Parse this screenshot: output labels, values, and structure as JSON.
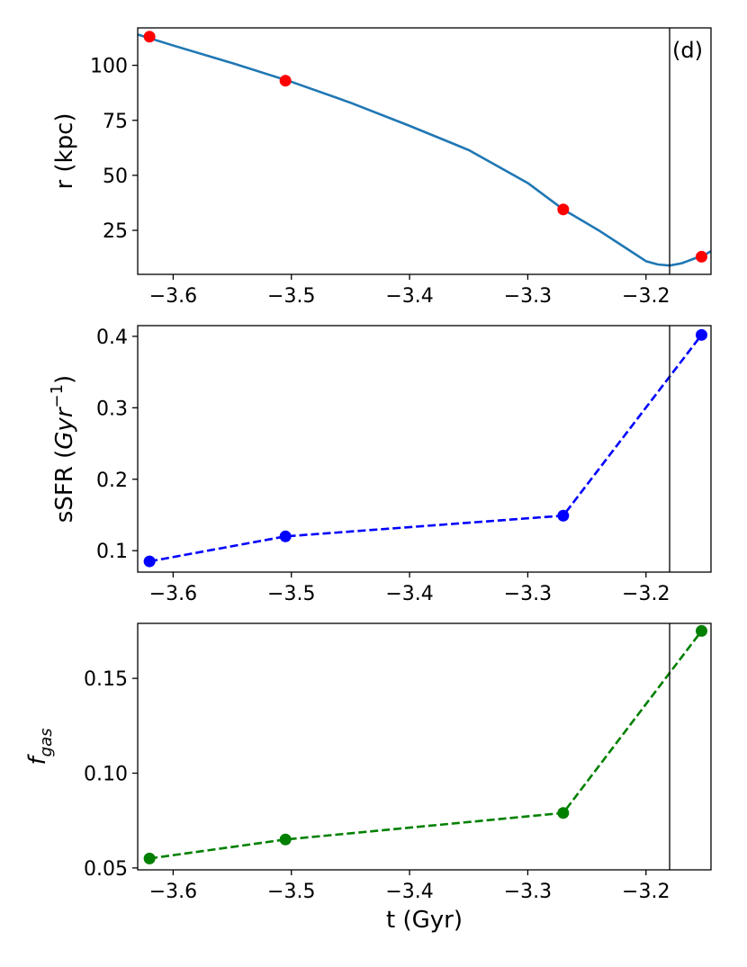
{
  "chart_data": [
    {
      "type": "line",
      "panel": "r",
      "annotation": "(d)",
      "xlabel": "",
      "ylabel": "r (kpc)",
      "xlim": [
        -3.63,
        -3.145
      ],
      "ylim": [
        5,
        117
      ],
      "xticks": [
        -3.6,
        -3.5,
        -3.4,
        -3.3,
        -3.2
      ],
      "xtick_labels": [
        "−3.6",
        "−3.5",
        "−3.4",
        "−3.3",
        "−3.2"
      ],
      "yticks": [
        25,
        50,
        75,
        100
      ],
      "ytick_labels": [
        "25",
        "50",
        "75",
        "100"
      ],
      "vline_x": -3.18,
      "series": [
        {
          "style": "solid",
          "color": "#1f77b4",
          "x": [
            -3.63,
            -3.6,
            -3.55,
            -3.5,
            -3.45,
            -3.4,
            -3.35,
            -3.3,
            -3.27,
            -3.24,
            -3.21,
            -3.2,
            -3.19,
            -3.18,
            -3.17,
            -3.16,
            -3.15,
            -3.145
          ],
          "y": [
            114,
            109,
            101,
            92.5,
            83,
            72.5,
            61.5,
            46.5,
            34.5,
            25,
            14.5,
            11,
            9.5,
            9,
            10,
            12,
            14,
            15.5
          ]
        }
      ],
      "markers": {
        "color": "#ff0000",
        "x": [
          -3.62,
          -3.505,
          -3.27,
          -3.153
        ],
        "y": [
          113,
          93,
          34.5,
          13
        ]
      }
    },
    {
      "type": "line",
      "panel": "sSFR",
      "xlabel": "",
      "ylabel_main": "sSFR (",
      "ylabel_italic": "Gyr",
      "ylabel_sup": "−1",
      "ylabel_close": ")",
      "xlim": [
        -3.63,
        -3.145
      ],
      "ylim": [
        0.07,
        0.415
      ],
      "xticks": [
        -3.6,
        -3.5,
        -3.4,
        -3.3,
        -3.2
      ],
      "xtick_labels": [
        "−3.6",
        "−3.5",
        "−3.4",
        "−3.3",
        "−3.2"
      ],
      "yticks": [
        0.1,
        0.2,
        0.3,
        0.4
      ],
      "ytick_labels": [
        "0.1",
        "0.2",
        "0.3",
        "0.4"
      ],
      "vline_x": -3.18,
      "series": [
        {
          "style": "dashed",
          "color": "#0000ff",
          "x": [
            -3.62,
            -3.505,
            -3.27,
            -3.153
          ],
          "y": [
            0.085,
            0.12,
            0.149,
            0.402
          ]
        }
      ]
    },
    {
      "type": "line",
      "panel": "fgas",
      "xlabel": "t (Gyr)",
      "ylabel_main": "f",
      "ylabel_sub": "gas",
      "xlim": [
        -3.63,
        -3.145
      ],
      "ylim": [
        0.049,
        0.179
      ],
      "xticks": [
        -3.6,
        -3.5,
        -3.4,
        -3.3,
        -3.2
      ],
      "xtick_labels": [
        "−3.6",
        "−3.5",
        "−3.4",
        "−3.3",
        "−3.2"
      ],
      "yticks": [
        0.05,
        0.1,
        0.15
      ],
      "ytick_labels": [
        "0.05",
        "0.10",
        "0.15"
      ],
      "vline_x": -3.18,
      "series": [
        {
          "style": "dashed",
          "color": "#008000",
          "x": [
            -3.62,
            -3.505,
            -3.27,
            -3.153
          ],
          "y": [
            0.055,
            0.065,
            0.079,
            0.175
          ]
        }
      ]
    }
  ]
}
